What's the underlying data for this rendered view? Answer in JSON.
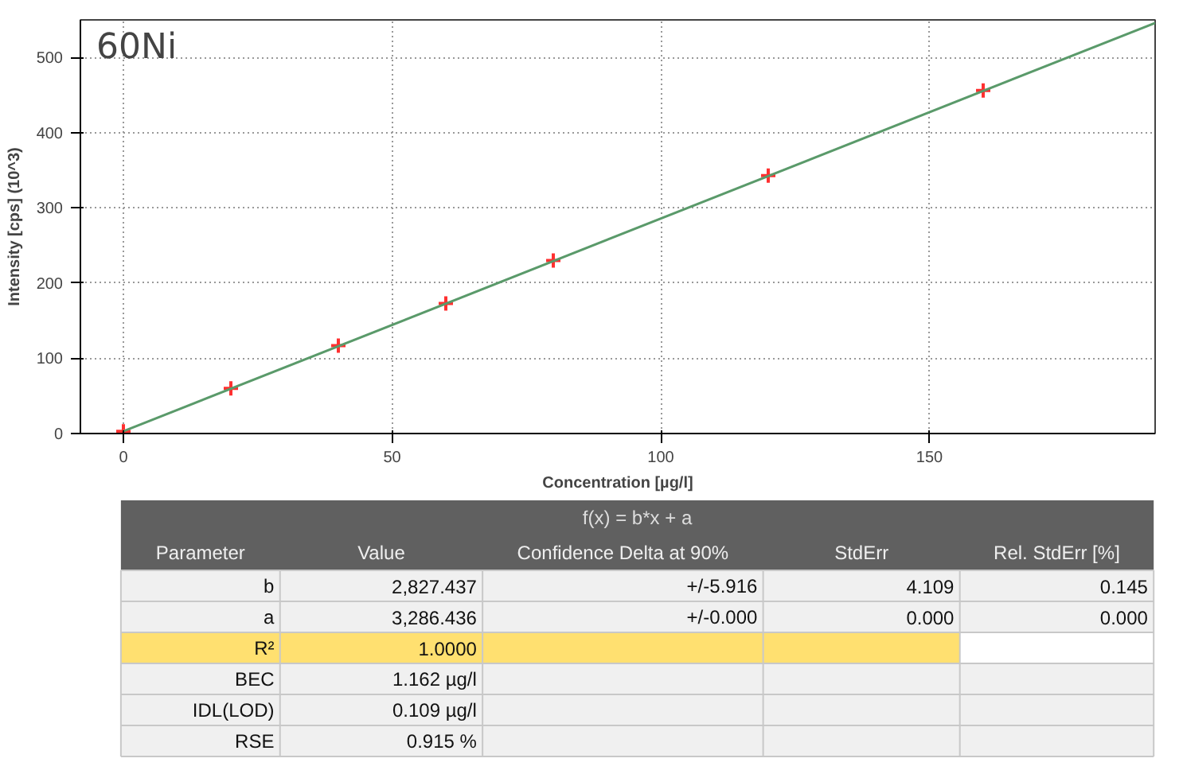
{
  "chart_data": [
    {
      "type": "scatter",
      "xlabel": "Concentration [µg/l]",
      "ylabel": "Intensity [cps] (10^3)",
      "annotations": [
        "60Ni"
      ],
      "xlim": [
        -8,
        192
      ],
      "ylim": [
        0,
        550
      ],
      "xticks": [
        0,
        50,
        100,
        150
      ],
      "yticks": [
        0,
        100,
        200,
        300,
        400,
        500
      ],
      "grid": true,
      "marker": "cross",
      "series": [
        {
          "type": "scatter",
          "color": "#ff3030",
          "x": [
            0,
            20,
            40,
            60,
            80,
            120,
            160
          ],
          "values": [
            3,
            60,
            117,
            173,
            230,
            343,
            456
          ]
        },
        {
          "type": "line",
          "color": "#5a9a6a",
          "marker": "none",
          "line_style": "solid",
          "x": [
            0,
            192
          ],
          "values": [
            3,
            546
          ]
        }
      ]
    },
    {
      "type": "other",
      "title": "f(x) = b*x + a",
      "categories": [
        "Parameter",
        "Value",
        "Confidence Delta at 90%",
        "StdErr",
        "Rel. StdErr [%]"
      ],
      "y_categories": [
        "b",
        "a",
        "R²",
        "BEC",
        "IDL(LOD)",
        "RSE"
      ],
      "cell_labels": [
        [
          "2,827.437",
          "+/-5.916",
          "4.109",
          "0.145"
        ],
        [
          "3,286.436",
          "+/-0.000",
          "0.000",
          "0.000"
        ],
        [
          "1.0000",
          null,
          null,
          null
        ],
        [
          "1.162 µg/l",
          null,
          null,
          null
        ],
        [
          "0.109 µg/l",
          null,
          null,
          null
        ],
        [
          "0.915 %",
          null,
          null,
          null
        ]
      ]
    }
  ]
}
